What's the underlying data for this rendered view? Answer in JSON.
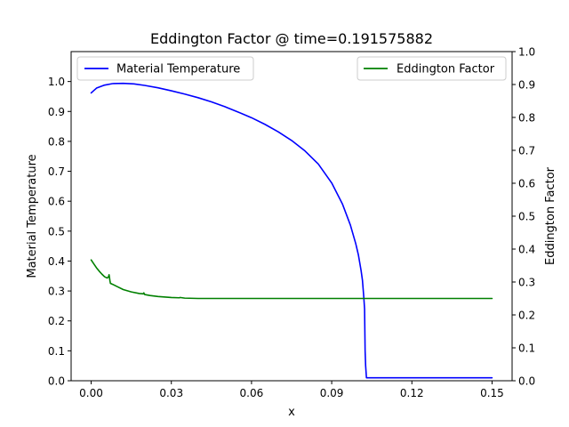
{
  "chart_data": {
    "type": "line",
    "title": "Eddington Factor @ time=0.191575882",
    "xlabel": "x",
    "ylabel_left": "Material Temperature",
    "ylabel_right": "Eddington Factor",
    "xlim": [
      -0.0075,
      0.1575
    ],
    "ylim_left": [
      0,
      1.1
    ],
    "ylim_right": [
      0,
      1.0
    ],
    "x_ticks": [
      0.0,
      0.03,
      0.06,
      0.09,
      0.12,
      0.15
    ],
    "x_tick_labels": [
      "0.00",
      "0.03",
      "0.06",
      "0.09",
      "0.12",
      "0.15"
    ],
    "y_left_ticks": [
      0.0,
      0.1,
      0.2,
      0.3,
      0.4,
      0.5,
      0.6,
      0.7,
      0.8,
      0.9,
      1.0
    ],
    "y_left_tick_labels": [
      "0.0",
      "0.1",
      "0.2",
      "0.3",
      "0.4",
      "0.5",
      "0.6",
      "0.7",
      "0.8",
      "0.9",
      "1.0"
    ],
    "y_right_ticks": [
      0.0,
      0.1,
      0.2,
      0.3,
      0.4,
      0.5,
      0.6,
      0.7,
      0.8,
      0.9,
      1.0
    ],
    "y_right_tick_labels": [
      "0.0",
      "0.1",
      "0.2",
      "0.3",
      "0.4",
      "0.5",
      "0.6",
      "0.7",
      "0.8",
      "0.9",
      "1.0"
    ],
    "grid": false,
    "series": [
      {
        "name": "Material Temperature",
        "axis": "left",
        "color": "#0000ff",
        "legend": "top-left",
        "x": [
          0.0,
          0.002,
          0.005,
          0.008,
          0.012,
          0.016,
          0.02,
          0.025,
          0.03,
          0.035,
          0.04,
          0.045,
          0.05,
          0.055,
          0.06,
          0.065,
          0.07,
          0.075,
          0.08,
          0.085,
          0.09,
          0.094,
          0.097,
          0.099,
          0.1,
          0.101,
          0.1015,
          0.102,
          0.1023,
          0.1025,
          0.1027,
          0.103,
          0.11,
          0.12,
          0.13,
          0.14,
          0.15
        ],
        "y": [
          0.962,
          0.978,
          0.988,
          0.993,
          0.994,
          0.992,
          0.987,
          0.979,
          0.969,
          0.958,
          0.946,
          0.932,
          0.916,
          0.898,
          0.879,
          0.857,
          0.832,
          0.803,
          0.768,
          0.724,
          0.661,
          0.591,
          0.52,
          0.458,
          0.42,
          0.368,
          0.336,
          0.28,
          0.24,
          0.1,
          0.05,
          0.01,
          0.01,
          0.01,
          0.01,
          0.01,
          0.01
        ]
      },
      {
        "name": "Eddington Factor",
        "axis": "right",
        "color": "#008000",
        "legend": "top-right",
        "x": [
          0.0,
          0.001,
          0.002,
          0.003,
          0.004,
          0.005,
          0.006,
          0.0065,
          0.0067,
          0.007,
          0.0072,
          0.008,
          0.01,
          0.012,
          0.015,
          0.018,
          0.0195,
          0.0197,
          0.02,
          0.022,
          0.025,
          0.03,
          0.033,
          0.0332,
          0.035,
          0.04,
          0.05,
          0.06,
          0.08,
          0.1,
          0.12,
          0.15
        ],
        "y": [
          0.367,
          0.355,
          0.343,
          0.333,
          0.324,
          0.316,
          0.312,
          0.316,
          0.322,
          0.305,
          0.296,
          0.293,
          0.285,
          0.277,
          0.27,
          0.265,
          0.264,
          0.267,
          0.262,
          0.259,
          0.256,
          0.253,
          0.252,
          0.253,
          0.251,
          0.25,
          0.25,
          0.25,
          0.25,
          0.25,
          0.25,
          0.25
        ]
      }
    ]
  }
}
